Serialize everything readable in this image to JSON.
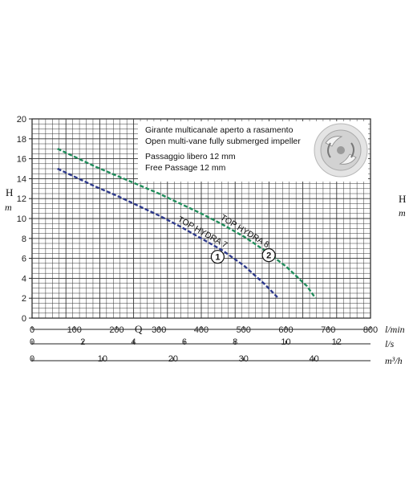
{
  "chart_data": {
    "type": "line",
    "notes": [
      "Girante multicanale aperto a rasamento",
      "Open multi-vane fully submerged impeller",
      "Passaggio libero 12 mm",
      "Free Passage 12 mm"
    ],
    "ylabel_left": "H",
    "yunit_left": "m",
    "ylabel_right": "H",
    "yunit_right": "m",
    "xlabel": "Q",
    "ylim": [
      0,
      20
    ],
    "y_ticks": [
      "0",
      "2",
      "4",
      "6",
      "8",
      "10",
      "12",
      "14",
      "16",
      "18",
      "20"
    ],
    "x_axes": [
      {
        "unit": "l/min",
        "range": [
          0,
          800
        ],
        "ticks": [
          "0",
          "100",
          "200",
          "300",
          "400",
          "500",
          "600",
          "700",
          "800"
        ]
      },
      {
        "unit": "l/s",
        "range": [
          0,
          13.333
        ],
        "ticks": [
          "0",
          "2",
          "4",
          "6",
          "8",
          "10",
          "12"
        ]
      },
      {
        "unit": "m³/h",
        "range": [
          0,
          48
        ],
        "ticks": [
          "0",
          "10",
          "20",
          "30",
          "40"
        ]
      }
    ],
    "grid": true,
    "series": [
      {
        "name": "TOP HYDRA 7",
        "marker": "1",
        "color": "#2e3a8c",
        "x_lmin": [
          60,
          100,
          150,
          200,
          250,
          300,
          350,
          400,
          450,
          500,
          550,
          580
        ],
        "y_m": [
          15,
          14.2,
          13.2,
          12.3,
          11.3,
          10.3,
          9.2,
          8.0,
          6.8,
          5.3,
          3.4,
          2.1
        ]
      },
      {
        "name": "TOP HYDRA 8",
        "marker": "2",
        "color": "#1f8c5a",
        "x_lmin": [
          60,
          100,
          150,
          200,
          250,
          300,
          350,
          400,
          450,
          500,
          550,
          600,
          650,
          670
        ],
        "y_m": [
          17,
          16.2,
          15.2,
          14.3,
          13.4,
          12.5,
          11.5,
          10.5,
          9.4,
          8.2,
          6.8,
          5.2,
          3.2,
          2.0
        ]
      }
    ]
  }
}
